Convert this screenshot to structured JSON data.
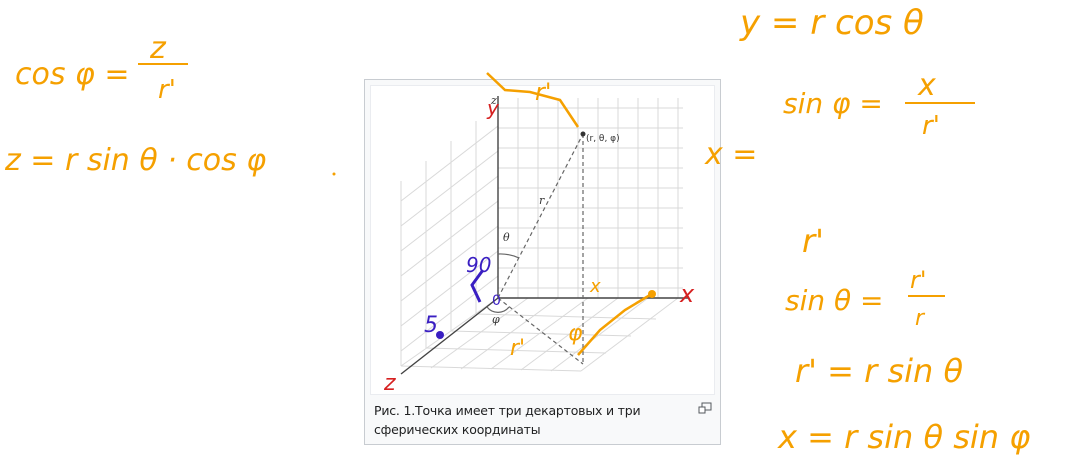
{
  "figure": {
    "caption": "Рис. 1.Точка имеет три декартовых и три сферических координаты",
    "labels": {
      "point": "(r, θ, φ)",
      "radius": "r",
      "theta": "θ",
      "phi": "φ",
      "z_axis": "z"
    },
    "icons": [
      "magnify-icon"
    ]
  },
  "handwriting": {
    "cos_phi": "cos φ =",
    "cos_phi_num": "z",
    "cos_phi_den": "r'",
    "z_formula": "z = r sin θ · cos φ",
    "y_formula": "y = r cos θ",
    "sin_phi": "sin φ =",
    "sin_phi_num": "x",
    "sin_phi_den": "r'",
    "x_eq": "x =",
    "r_prime": "r'",
    "sin_theta": "sin θ =",
    "sin_theta_num": "r'",
    "sin_theta_den": "r",
    "r_prime_formula": "r' = r sin θ",
    "x_formula": "x = r sin θ sin φ",
    "on_diagram": {
      "r_prime_top": "r'",
      "y_mark": "y",
      "x_mark": "x",
      "x_small": "x",
      "z_mark": "z",
      "ninety": "90",
      "zero": "0",
      "five": "5",
      "r_prime_floor": "r'",
      "phi_floor": "φ"
    },
    "colors": {
      "orange": "#f5a000",
      "red": "#d62020",
      "blue": "#3a1fc2"
    }
  }
}
